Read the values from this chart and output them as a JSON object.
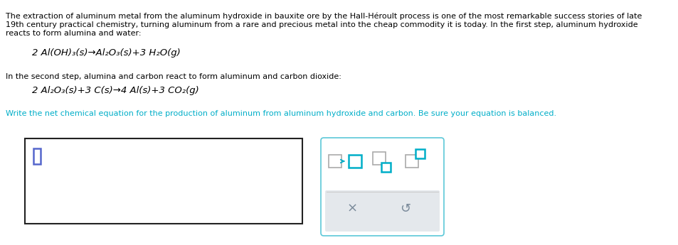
{
  "bg_color": "#ffffff",
  "text_color": "#000000",
  "cyan_color": "#00aec8",
  "gray_color": "#7a8a9a",
  "light_gray": "#e4e8ec",
  "paragraph1_line1": "The extraction of aluminum metal from the aluminum hydroxide in bauxite ore by the Hall-Héroult process is one of the most remarkable success stories of late",
  "paragraph1_line2": "19th century practical chemistry, turning aluminum from a rare and precious metal into the cheap commodity it is today. In the first step, aluminum hydroxide",
  "paragraph1_line3": "reacts to form alumina and water:",
  "eq1": "2 Al(OH)₃(s)→Al₂O₃(s)+3 H₂O(g)",
  "paragraph2": "In the second step, alumina and carbon react to form aluminum and carbon dioxide:",
  "eq2": "2 Al₂O₃(s)+3 C(s)→4 Al(s)+3 CO₂(g)",
  "paragraph3": "Write the net chemical equation for the production of aluminum from aluminum hydroxide and carbon. Be sure your equation is balanced.",
  "cyan_border": "#5cc8d8",
  "dark_border": "#222222"
}
